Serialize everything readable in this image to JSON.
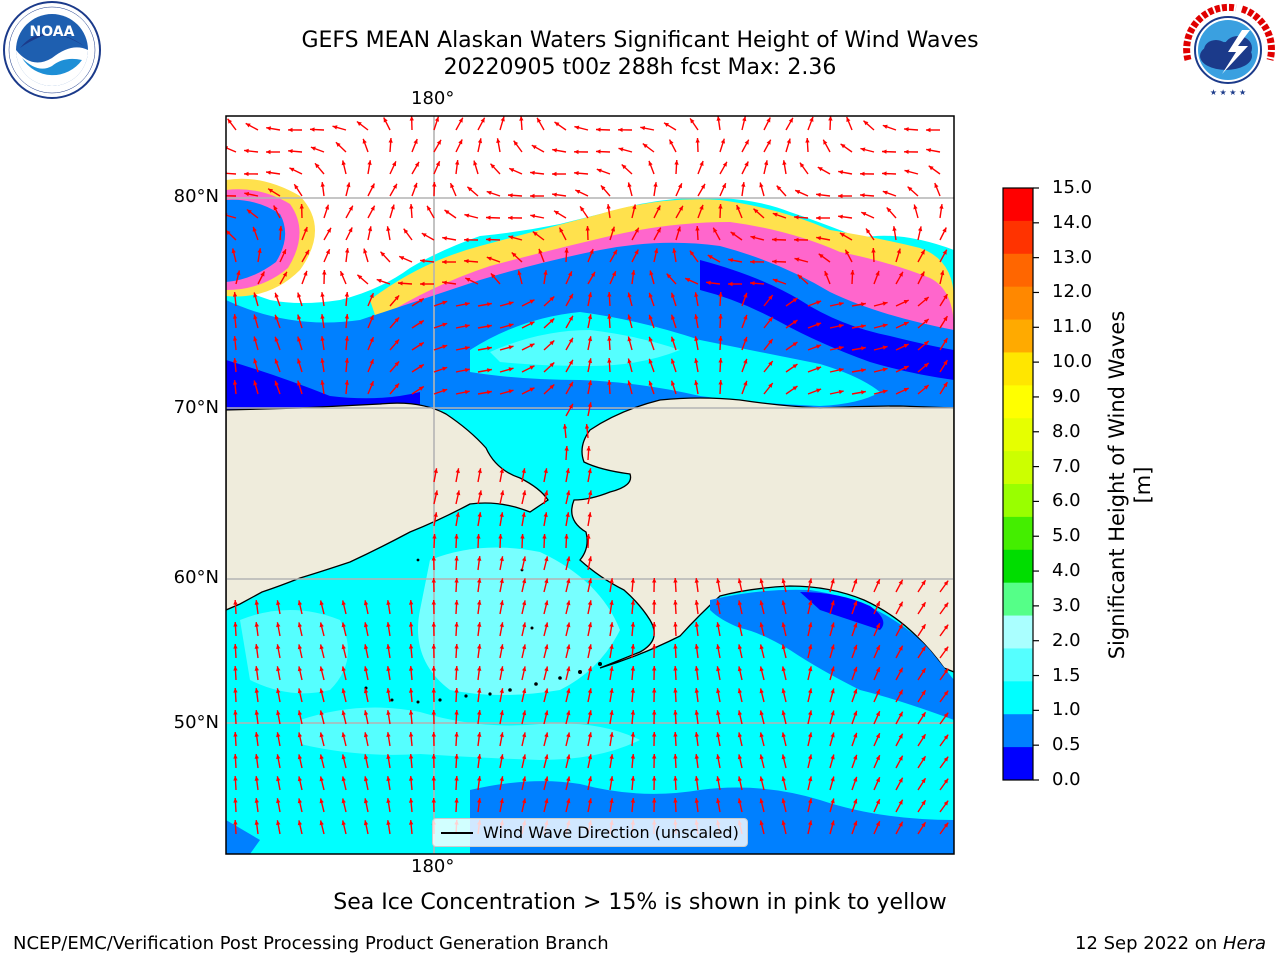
{
  "header": {
    "title_line1": "GEFS MEAN Alaskan Waters Significant Height of Wind Waves",
    "title_line2": "20220905 t00z 288h fcst   Max: 2.36"
  },
  "logos": {
    "left": "NOAA",
    "left_ring": "NATIONAL OCEANIC AND ATMOSPHERIC ADMINISTRATION · U.S. DEPARTMENT OF COMMERCE",
    "right_ring": "NATIONAL WEATHER SERVICE"
  },
  "map": {
    "lat_labels": [
      "80°N",
      "70°N",
      "60°N",
      "50°N"
    ],
    "lon_label_top": "180°",
    "lon_label_bottom": "180°",
    "legend_label": "Wind Wave Direction (unscaled)",
    "colors": {
      "land": "#efecdc",
      "water_low": "#0000ff",
      "water_05": "#0080ff",
      "water_10": "#00ffff",
      "water_15": "#55ffff",
      "water_20": "#aaffff",
      "ice_pink": "#ff66cc",
      "ice_yellow": "#ffe600",
      "arrow": "#ff0000"
    }
  },
  "colorbar": {
    "title": "Significant Height of Wind Waves [m]",
    "tick_labels": [
      "15.0",
      "14.0",
      "13.0",
      "12.0",
      "11.0",
      "10.0",
      "9.0",
      "8.0",
      "7.0",
      "6.0",
      "5.0",
      "4.0",
      "3.0",
      "2.0",
      "1.5",
      "1.0",
      "0.5",
      "0.0"
    ],
    "colors_top_to_bottom": [
      "#ff0000",
      "#ff3300",
      "#ff6600",
      "#ff8800",
      "#ffaa00",
      "#ffe600",
      "#ffff00",
      "#e6ff00",
      "#ccff00",
      "#99ff00",
      "#44ee00",
      "#00dd00",
      "#55ff88",
      "#aaffff",
      "#55ffff",
      "#00ffff",
      "#0080ff",
      "#0000ff"
    ]
  },
  "footer": {
    "sea_ice_note": "Sea Ice Concentration > 15% is shown in pink to yellow",
    "branch": "NCEP/EMC/Verification Post Processing Product Generation Branch",
    "date_prefix": "12 Sep 2022 on ",
    "machine": "Hera"
  }
}
